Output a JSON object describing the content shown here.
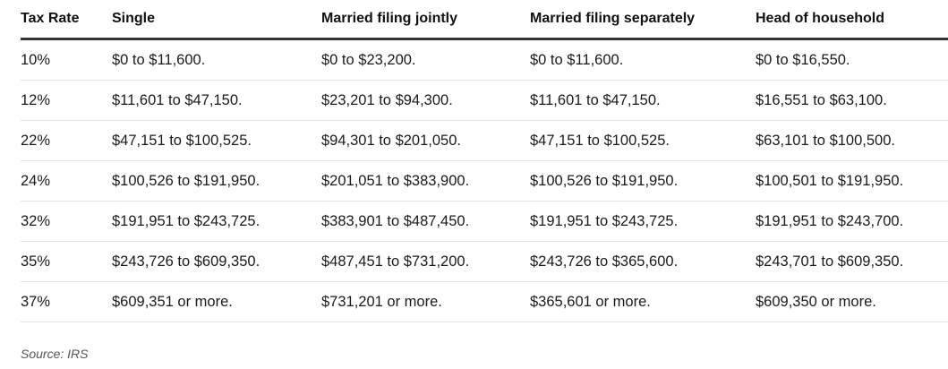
{
  "table": {
    "headers": [
      "Tax Rate",
      "Single",
      "Married filing jointly",
      "Married filing separately",
      "Head of household"
    ],
    "rows": [
      [
        "10%",
        "$0 to $11,600.",
        "$0 to $23,200.",
        "$0 to $11,600.",
        "$0 to $16,550."
      ],
      [
        "12%",
        "$11,601 to $47,150.",
        "$23,201 to $94,300.",
        "$11,601 to $47,150.",
        "$16,551 to $63,100."
      ],
      [
        "22%",
        "$47,151 to $100,525.",
        "$94,301 to $201,050.",
        "$47,151 to $100,525.",
        "$63,101 to $100,500."
      ],
      [
        "24%",
        "$100,526 to $191,950.",
        "$201,051 to $383,900.",
        "$100,526 to $191,950.",
        "$100,501 to $191,950."
      ],
      [
        "32%",
        "$191,951 to $243,725.",
        "$383,901 to $487,450.",
        "$191,951 to $243,725.",
        "$191,951 to $243,700."
      ],
      [
        "35%",
        "$243,726 to $609,350.",
        "$487,451 to $731,200.",
        "$243,726 to $365,600.",
        "$243,701 to $609,350."
      ],
      [
        "37%",
        "$609,351 or more.",
        "$731,201 or more.",
        "$365,601 or more.",
        "$609,350 or more."
      ]
    ]
  },
  "source": "Source: IRS"
}
